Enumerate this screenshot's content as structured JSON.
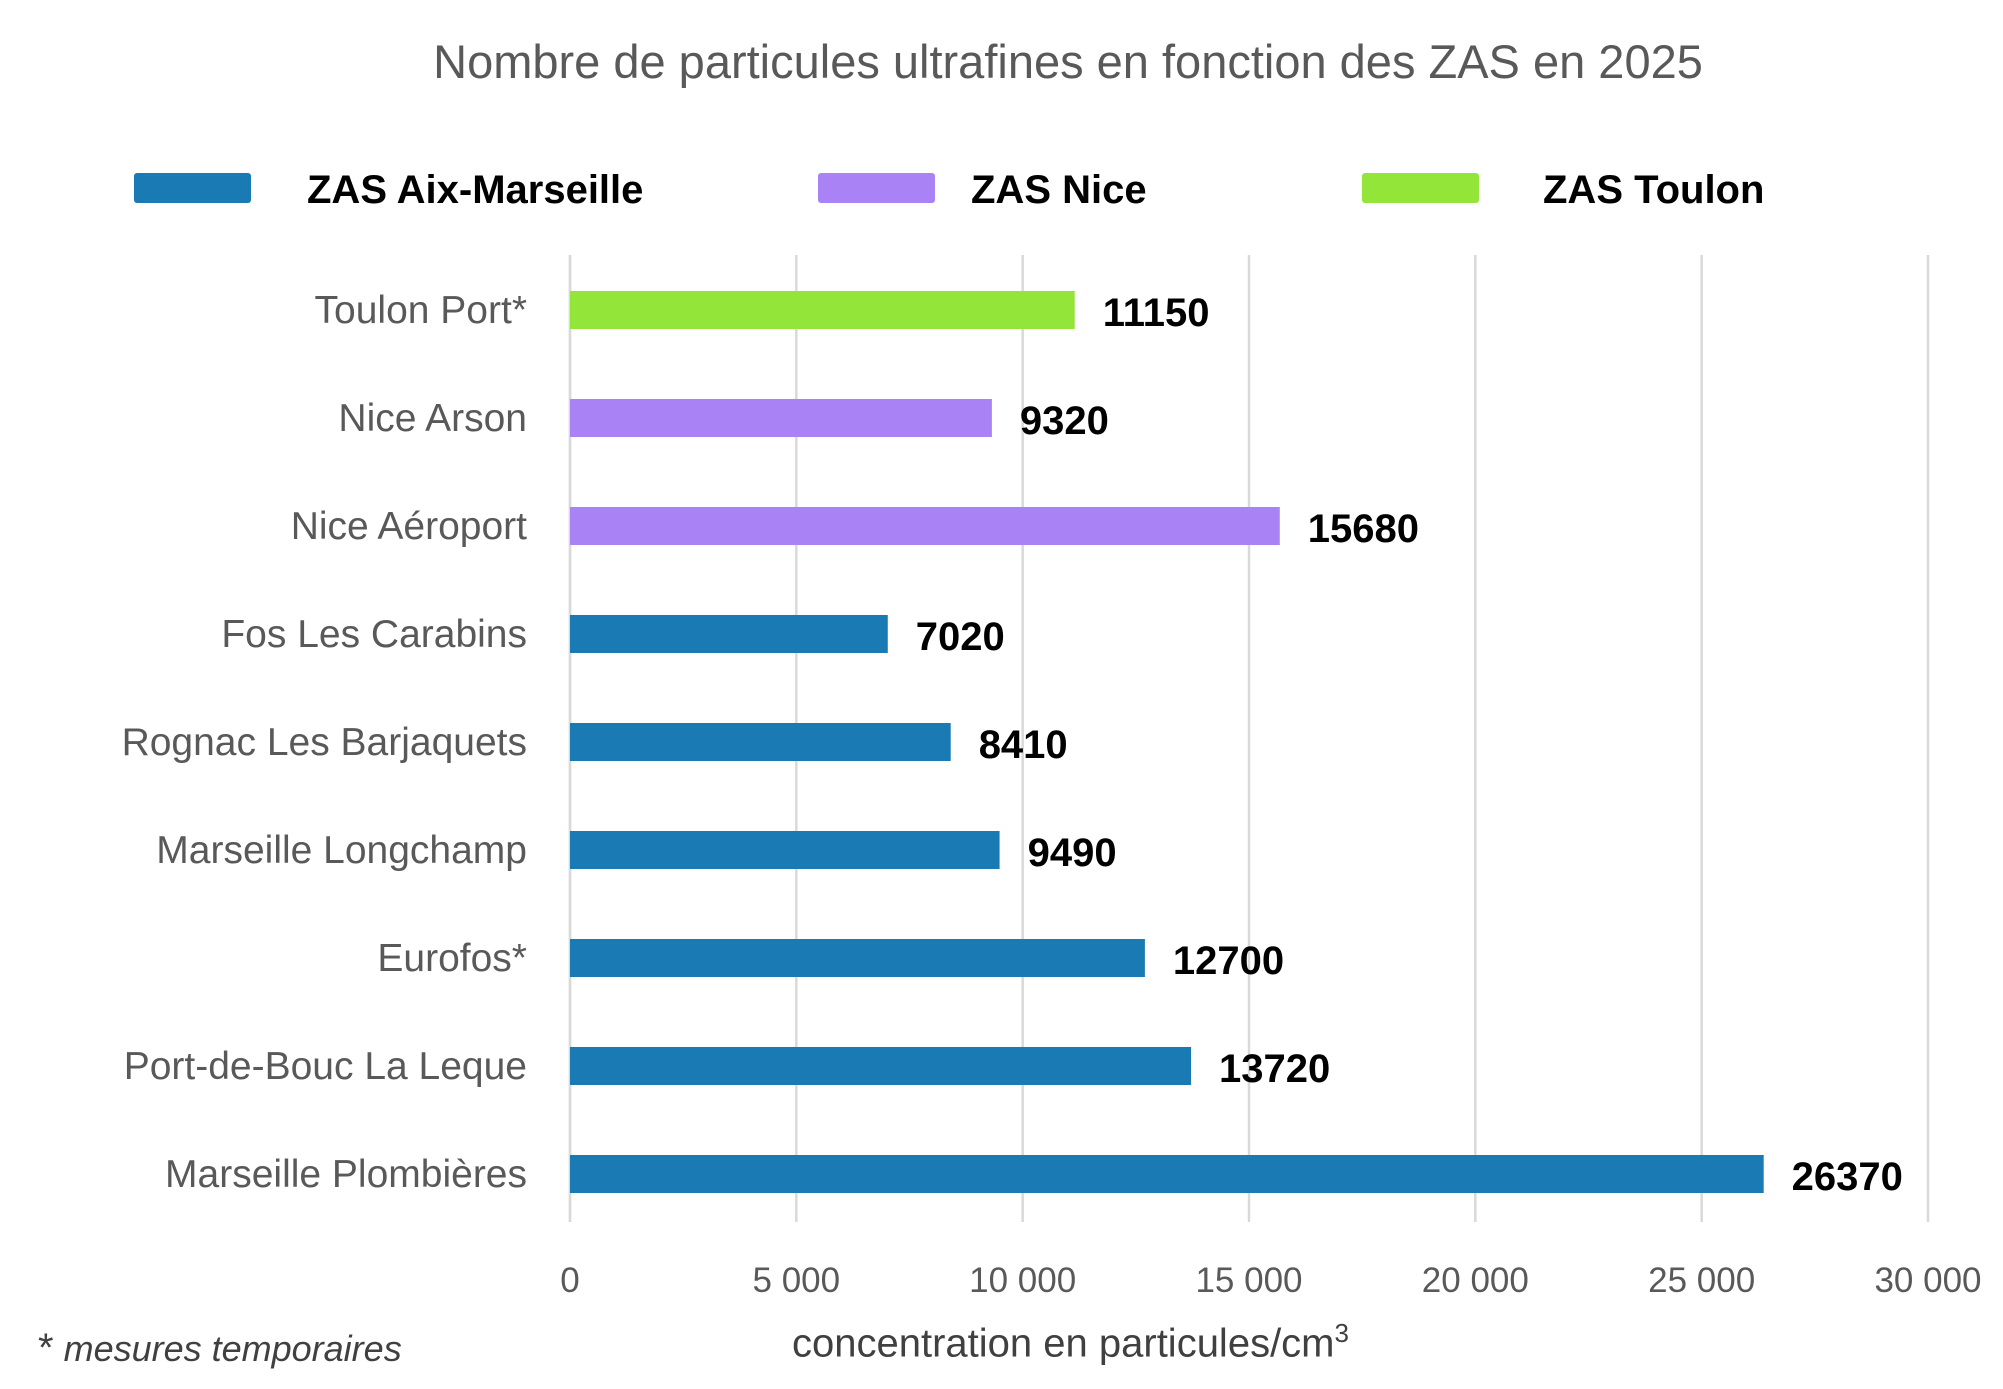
{
  "chart_data": {
    "type": "bar",
    "orientation": "horizontal",
    "title": "Nombre de particules ultrafines en fonction des ZAS en 2025",
    "xlabel_main": "concentration en particules/cm",
    "xlabel_sup": "3",
    "xlim": [
      0,
      30000
    ],
    "xticks": [
      0,
      5000,
      10000,
      15000,
      20000,
      25000,
      30000
    ],
    "xtick_labels": [
      "0",
      "5 000",
      "10 000",
      "15 000",
      "20 000",
      "25 000",
      "30 000"
    ],
    "grid": "vertical",
    "legend_position": "top",
    "legend": [
      {
        "label": "ZAS Aix-Marseille",
        "color": "#1a7ab4"
      },
      {
        "label": "ZAS Nice",
        "color": "#a983f5"
      },
      {
        "label": "ZAS Toulon",
        "color": "#94e53a"
      }
    ],
    "categories": [
      "Toulon Port*",
      "Nice Arson",
      "Nice Aéroport",
      "Fos Les Carabins",
      "Rognac Les Barjaquets",
      "Marseille Longchamp",
      "Eurofos*",
      "Port-de-Bouc La Leque",
      "Marseille Plombières"
    ],
    "values": [
      11150,
      9320,
      15680,
      7020,
      8410,
      9490,
      12700,
      13720,
      26370
    ],
    "value_labels": [
      "11150",
      "9320",
      "15680",
      "7020",
      "8410",
      "9490",
      "12700",
      "13720",
      "26370"
    ],
    "bar_groups": [
      2,
      1,
      1,
      0,
      0,
      0,
      0,
      0,
      0
    ]
  },
  "footnote": {
    "star": "*",
    "text": "mesures temporaires"
  }
}
